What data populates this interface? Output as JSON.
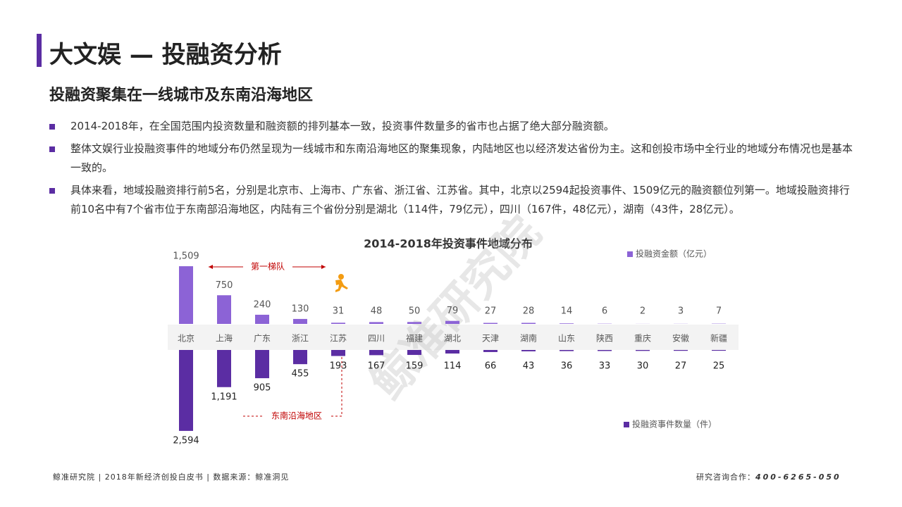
{
  "header": {
    "title": "大文娱 — 投融资分析",
    "subtitle": "投融资聚集在一线城市及东南沿海地区"
  },
  "bullets": [
    "2014-2018年，在全国范围内投资数量和融资额的排列基本一致，投资事件数量多的省市也占据了绝大部分融资额。",
    "整体文娱行业投融资事件的地域分布仍然呈现为一线城市和东南沿海地区的聚集现象，内陆地区也以经济发达省份为主。这和创投市场中全行业的地域分布情况也是基本一致的。",
    "具体来看，地域投融资排行前5名，分别是北京市、上海市、广东省、浙江省、江苏省。其中，北京以2594起投资事件、1509亿元的融资额位列第一。地域投融资排行前10名中有7个省市位于东南部沿海地区，内陆有三个省份分别是湖北（114件，79亿元），四川（167件，48亿元），湖南（43件，28亿元）。"
  ],
  "chart_data": {
    "type": "mirrored-bar",
    "title": "2014-2018年投资事件地域分布",
    "categories": [
      "北京",
      "上海",
      "广东",
      "浙江",
      "江苏",
      "四川",
      "福建",
      "湖北",
      "天津",
      "湖南",
      "山东",
      "陕西",
      "重庆",
      "安徽",
      "新疆"
    ],
    "series": [
      {
        "name": "投融资金额（亿元）",
        "color": "#8c63d6",
        "values": [
          1509,
          750,
          240,
          130,
          31,
          48,
          50,
          79,
          27,
          28,
          14,
          6,
          2,
          3,
          7
        ],
        "value_labels": [
          "1,509",
          "750",
          "240",
          "130",
          "31",
          "48",
          "50",
          "79",
          "27",
          "28",
          "14",
          "6",
          "2",
          "3",
          "7"
        ]
      },
      {
        "name": "投融资事件数量（件）",
        "color": "#5b2da3",
        "values": [
          2594,
          1191,
          905,
          455,
          193,
          167,
          159,
          114,
          66,
          43,
          36,
          33,
          30,
          27,
          25
        ],
        "value_labels": [
          "2,594",
          "1,191",
          "905",
          "455",
          "193",
          "167",
          "159",
          "114",
          "66",
          "43",
          "36",
          "33",
          "30",
          "27",
          "25"
        ]
      }
    ],
    "annotations": [
      "第一梯队",
      "东南沿海地区"
    ]
  },
  "watermark": "鲸准研究院",
  "footer": {
    "source": "鲸准研究院 | 2018年新经济创投白皮书 | 数据来源：鲸准洞见",
    "contact_label": "研究咨询合作：",
    "contact_phone": "400-6265-050"
  }
}
